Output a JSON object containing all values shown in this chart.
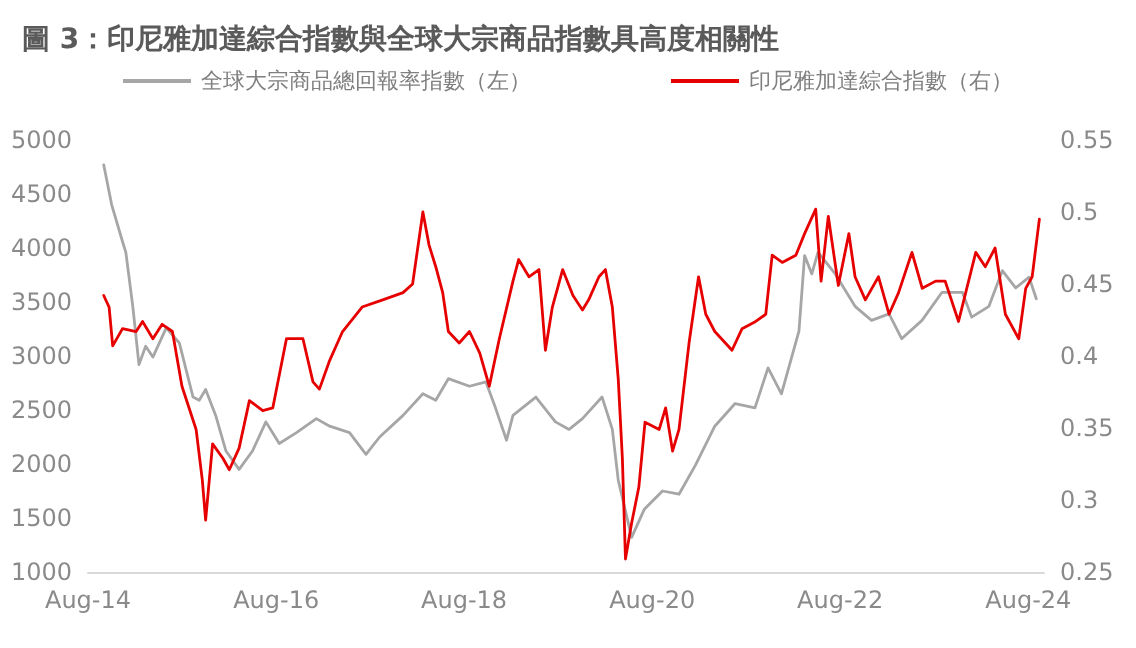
{
  "chart_data": {
    "type": "line",
    "title": "圖 3：印尼雅加達綜合指數與全球大宗商品指數具高度相關性",
    "series": [
      {
        "name": "全球大宗商品總回報率指數（左）",
        "color": "#a6a6a6",
        "x": [
          "2014-10-01",
          "2014-11-01",
          "2014-12-13",
          "2014-12-26",
          "2015-01-22",
          "2015-02-15",
          "2015-03-13",
          "2015-04-10",
          "2015-06-01",
          "2015-07-22",
          "2015-09-13",
          "2015-10-07",
          "2015-11-01",
          "2015-12-10",
          "2016-01-19",
          "2016-03-10",
          "2016-05-01",
          "2016-06-22",
          "2016-08-13",
          "2016-10-19",
          "2017-01-04",
          "2017-02-25",
          "2017-05-13",
          "2017-07-16",
          "2017-09-07",
          "2017-12-07",
          "2018-02-22",
          "2018-04-13",
          "2018-06-01",
          "2018-08-22",
          "2018-10-25",
          "2018-12-01",
          "2019-01-13",
          "2019-02-07",
          "2019-05-07",
          "2019-07-22",
          "2019-09-13",
          "2019-11-04",
          "2020-01-19",
          "2020-02-28",
          "2020-03-22",
          "2020-05-13",
          "2020-07-01",
          "2020-09-10",
          "2020-11-13",
          "2021-01-16",
          "2021-04-01",
          "2021-06-19",
          "2021-09-04",
          "2021-10-25",
          "2021-12-16",
          "2022-02-22",
          "2022-03-16",
          "2022-04-13",
          "2022-05-07",
          "2022-07-13",
          "2022-09-28",
          "2022-12-01",
          "2023-02-07",
          "2023-03-28",
          "2023-06-15",
          "2023-09-01",
          "2023-11-19",
          "2023-12-25",
          "2024-03-01",
          "2024-04-22",
          "2024-06-13",
          "2024-08-04",
          "2024-09-01"
        ],
        "values": [
          4770,
          4400,
          4060,
          3960,
          3460,
          2920,
          3090,
          2990,
          3260,
          3120,
          2620,
          2590,
          2690,
          2450,
          2120,
          1950,
          2120,
          2390,
          2190,
          2290,
          2420,
          2350,
          2290,
          2090,
          2250,
          2450,
          2650,
          2590,
          2790,
          2720,
          2760,
          2520,
          2220,
          2450,
          2620,
          2390,
          2320,
          2420,
          2620,
          2320,
          1850,
          1320,
          1580,
          1750,
          1720,
          1990,
          2350,
          2560,
          2520,
          2890,
          2650,
          3230,
          3930,
          3760,
          3960,
          3760,
          3460,
          3330,
          3390,
          3160,
          3330,
          3590,
          3590,
          3360,
          3460,
          3790,
          3630,
          3730,
          3530
        ]
      },
      {
        "name": "印尼雅加達綜合指數（右）",
        "color": "#e60000",
        "axis": "y2",
        "x": [
          "2014-10-01",
          "2014-10-22",
          "2014-11-05",
          "2014-12-13",
          "2015-02-04",
          "2015-03-01",
          "2015-04-10",
          "2015-05-16",
          "2015-06-25",
          "2015-08-01",
          "2015-09-25",
          "2015-10-19",
          "2015-11-01",
          "2015-11-28",
          "2016-01-07",
          "2016-02-01",
          "2016-03-10",
          "2016-04-19",
          "2016-06-10",
          "2016-07-19",
          "2016-09-10",
          "2016-11-13",
          "2016-12-22",
          "2017-01-16",
          "2017-02-25",
          "2017-04-16",
          "2017-07-01",
          "2017-09-19",
          "2017-12-07",
          "2018-01-13",
          "2018-02-22",
          "2018-03-18",
          "2018-04-13",
          "2018-05-10",
          "2018-06-01",
          "2018-07-13",
          "2018-08-22",
          "2018-10-01",
          "2018-11-07",
          "2018-12-16",
          "2019-02-07",
          "2019-03-01",
          "2019-04-10",
          "2019-05-19",
          "2019-06-13",
          "2019-07-10",
          "2019-08-19",
          "2019-09-28",
          "2019-11-04",
          "2019-11-28",
          "2020-01-07",
          "2020-02-01",
          "2020-02-28",
          "2020-03-22",
          "2020-04-07",
          "2020-04-19",
          "2020-05-13",
          "2020-06-10",
          "2020-07-04",
          "2020-08-28",
          "2020-09-22",
          "2020-10-19",
          "2020-11-13",
          "2020-12-22",
          "2021-01-28",
          "2021-02-25",
          "2021-04-01",
          "2021-06-07",
          "2021-07-16",
          "2021-09-07",
          "2021-10-16",
          "2021-11-10",
          "2021-12-19",
          "2022-02-10",
          "2022-03-16",
          "2022-04-28",
          "2022-05-19",
          "2022-06-16",
          "2022-07-25",
          "2022-09-04",
          "2022-09-28",
          "2022-11-07",
          "2022-12-28",
          "2023-02-07",
          "2023-03-16",
          "2023-05-07",
          "2023-06-16",
          "2023-08-07",
          "2023-09-13",
          "2023-11-04",
          "2024-01-10",
          "2024-02-16",
          "2024-03-25",
          "2024-05-04",
          "2024-06-25",
          "2024-07-22",
          "2024-08-16",
          "2024-09-13"
        ],
        "values": [
          0.442,
          0.434,
          0.407,
          0.419,
          0.417,
          0.424,
          0.412,
          0.422,
          0.417,
          0.379,
          0.349,
          0.314,
          0.286,
          0.339,
          0.329,
          0.321,
          0.336,
          0.369,
          0.362,
          0.364,
          0.412,
          0.412,
          0.382,
          0.377,
          0.397,
          0.417,
          0.434,
          0.439,
          0.444,
          0.45,
          0.5,
          0.477,
          0.462,
          0.444,
          0.417,
          0.409,
          0.417,
          0.402,
          0.379,
          0.412,
          0.452,
          0.467,
          0.455,
          0.46,
          0.404,
          0.434,
          0.46,
          0.442,
          0.432,
          0.439,
          0.455,
          0.46,
          0.434,
          0.384,
          0.329,
          0.259,
          0.284,
          0.309,
          0.354,
          0.349,
          0.364,
          0.334,
          0.349,
          0.409,
          0.455,
          0.429,
          0.417,
          0.404,
          0.419,
          0.424,
          0.429,
          0.47,
          0.465,
          0.47,
          0.485,
          0.502,
          0.452,
          0.497,
          0.449,
          0.485,
          0.455,
          0.439,
          0.455,
          0.429,
          0.444,
          0.472,
          0.447,
          0.452,
          0.452,
          0.424,
          0.472,
          0.462,
          0.475,
          0.429,
          0.412,
          0.447,
          0.455,
          0.495
        ]
      }
    ],
    "xlim": [
      "2014-08-01",
      "2024-10-01"
    ],
    "xticks": [
      {
        "value": "2014-08-01",
        "label": "Aug-14"
      },
      {
        "value": "2016-08-01",
        "label": "Aug-16"
      },
      {
        "value": "2018-08-01",
        "label": "Aug-18"
      },
      {
        "value": "2020-08-01",
        "label": "Aug-20"
      },
      {
        "value": "2022-08-01",
        "label": "Aug-22"
      },
      {
        "value": "2024-08-01",
        "label": "Aug-24"
      }
    ],
    "ylim": [
      1000,
      5000
    ],
    "yticks": [
      1000,
      1500,
      2000,
      2500,
      3000,
      3500,
      4000,
      4500,
      5000
    ],
    "y2lim": [
      0.25,
      0.55
    ],
    "y2ticks": [
      0.25,
      0.3,
      0.35,
      0.4,
      0.45,
      0.5,
      0.55
    ],
    "grid": false,
    "legend": "top",
    "marker": "none",
    "line_style": "solid"
  }
}
